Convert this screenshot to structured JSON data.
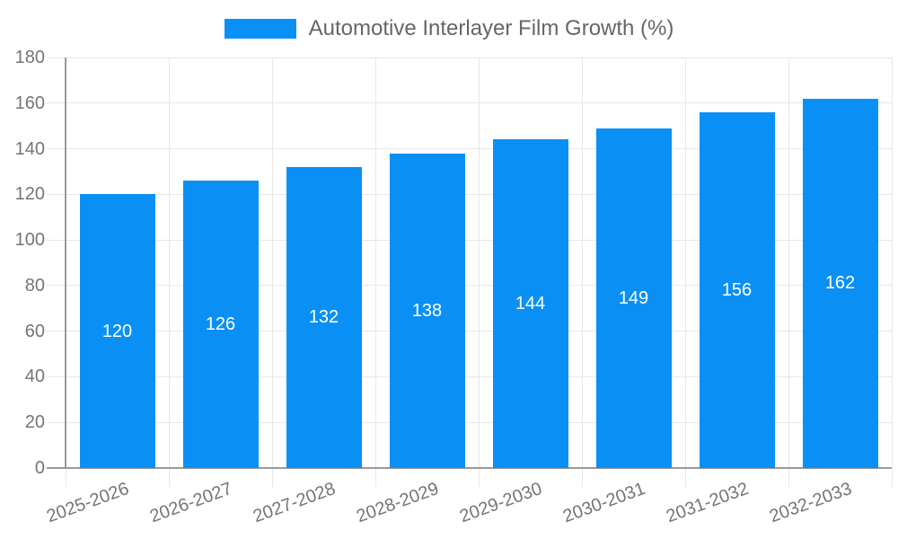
{
  "chart_data": {
    "type": "bar",
    "title": "",
    "series_name": "Automotive Interlayer Film Growth (%)",
    "categories": [
      "2025-2026",
      "2026-2027",
      "2027-2028",
      "2028-2029",
      "2029-2030",
      "2030-2031",
      "2031-2032",
      "2032-2033"
    ],
    "values": [
      120,
      126,
      132,
      138,
      144,
      149,
      156,
      162
    ],
    "xlabel": "",
    "ylabel": "",
    "ylim": [
      0,
      180
    ],
    "ytick_step": 20,
    "yticks": [
      0,
      20,
      40,
      60,
      80,
      100,
      120,
      140,
      160,
      180
    ],
    "grid": true,
    "legend_position": "top",
    "x_label_rotation_deg": -20,
    "colors": {
      "bar": "#0A90F5",
      "value_label": "#FFFFFF",
      "axis_line": "#999999",
      "gridline": "#E7E7E7",
      "tick_label": "#757575",
      "legend_text": "#666666"
    }
  }
}
